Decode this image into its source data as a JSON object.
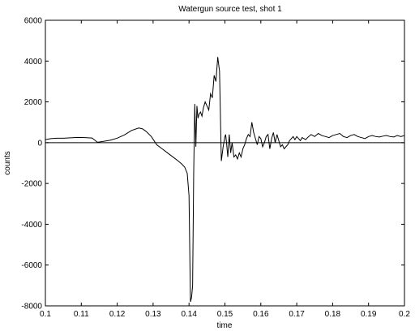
{
  "chart_data": {
    "type": "line",
    "title": "Watergun source test, shot 1",
    "xlabel": "time",
    "ylabel": "counts",
    "xlim": [
      0.1,
      0.2
    ],
    "ylim": [
      -8000,
      6000
    ],
    "xticks": [
      0.1,
      0.11,
      0.12,
      0.13,
      0.14,
      0.15,
      0.16,
      0.17,
      0.18,
      0.19,
      0.2
    ],
    "xtick_labels": [
      "0.1",
      "0.11",
      "0.12",
      "0.13",
      "0.14",
      "0.15",
      "0.16",
      "0.17",
      "0.18",
      "0.19",
      "0.2"
    ],
    "yticks": [
      -8000,
      -6000,
      -4000,
      -2000,
      0,
      2000,
      4000,
      6000
    ],
    "ytick_labels": [
      "-8000",
      "-6000",
      "-4000",
      "-2000",
      "0",
      "2000",
      "4000",
      "6000"
    ],
    "zero_line": true,
    "grid": false,
    "series": [
      {
        "x": [
          0.1,
          0.1015,
          0.103,
          0.105,
          0.107,
          0.109,
          0.111,
          0.113,
          0.1145,
          0.116,
          0.118,
          0.12,
          0.122,
          0.124,
          0.126,
          0.127,
          0.128,
          0.1295,
          0.131,
          0.1325,
          0.134,
          0.1355,
          0.137,
          0.138,
          0.1388,
          0.1395,
          0.14,
          0.1404,
          0.1407,
          0.141,
          0.1413,
          0.1416,
          0.1419,
          0.1422,
          0.1425,
          0.1428,
          0.1432,
          0.1436,
          0.144,
          0.1445,
          0.145,
          0.1455,
          0.146,
          0.1465,
          0.147,
          0.1475,
          0.148,
          0.1485,
          0.149,
          0.1495,
          0.15,
          0.1502,
          0.1505,
          0.1508,
          0.1512,
          0.1516,
          0.152,
          0.1525,
          0.153,
          0.1535,
          0.154,
          0.1545,
          0.155,
          0.1555,
          0.156,
          0.1565,
          0.157,
          0.1575,
          0.158,
          0.1585,
          0.159,
          0.1595,
          0.16,
          0.1605,
          0.161,
          0.1615,
          0.162,
          0.1625,
          0.163,
          0.1635,
          0.164,
          0.1645,
          0.165,
          0.1655,
          0.166,
          0.1665,
          0.167,
          0.1675,
          0.168,
          0.1685,
          0.169,
          0.1695,
          0.17,
          0.1705,
          0.171,
          0.1715,
          0.172,
          0.1725,
          0.173,
          0.174,
          0.175,
          0.176,
          0.177,
          0.178,
          0.179,
          0.18,
          0.181,
          0.182,
          0.183,
          0.184,
          0.185,
          0.186,
          0.187,
          0.188,
          0.189,
          0.19,
          0.191,
          0.192,
          0.193,
          0.194,
          0.195,
          0.196,
          0.197,
          0.198,
          0.199,
          0.2
        ],
        "y": [
          150,
          200,
          220,
          220,
          240,
          260,
          250,
          230,
          20,
          60,
          120,
          220,
          380,
          600,
          720,
          680,
          560,
          300,
          -100,
          -300,
          -500,
          -700,
          -900,
          -1050,
          -1200,
          -1500,
          -2600,
          -7800,
          -7600,
          -7000,
          -1500,
          1900,
          -200,
          1800,
          1200,
          1400,
          1500,
          1300,
          1700,
          2000,
          1800,
          1600,
          2400,
          2200,
          3300,
          3000,
          4200,
          3500,
          -900,
          -200,
          300,
          400,
          -100,
          -700,
          400,
          -500,
          0,
          -700,
          -600,
          -800,
          -500,
          -700,
          -300,
          -100,
          200,
          400,
          300,
          1000,
          500,
          200,
          -100,
          300,
          200,
          -200,
          0,
          300,
          400,
          -300,
          200,
          500,
          0,
          400,
          100,
          -200,
          -100,
          -300,
          -200,
          -100,
          100,
          200,
          300,
          150,
          300,
          200,
          100,
          250,
          200,
          150,
          250,
          400,
          300,
          450,
          350,
          300,
          250,
          350,
          400,
          450,
          300,
          250,
          350,
          400,
          300,
          250,
          200,
          300,
          350,
          300,
          280,
          320,
          350,
          300,
          280,
          350,
          300,
          350
        ]
      }
    ]
  }
}
